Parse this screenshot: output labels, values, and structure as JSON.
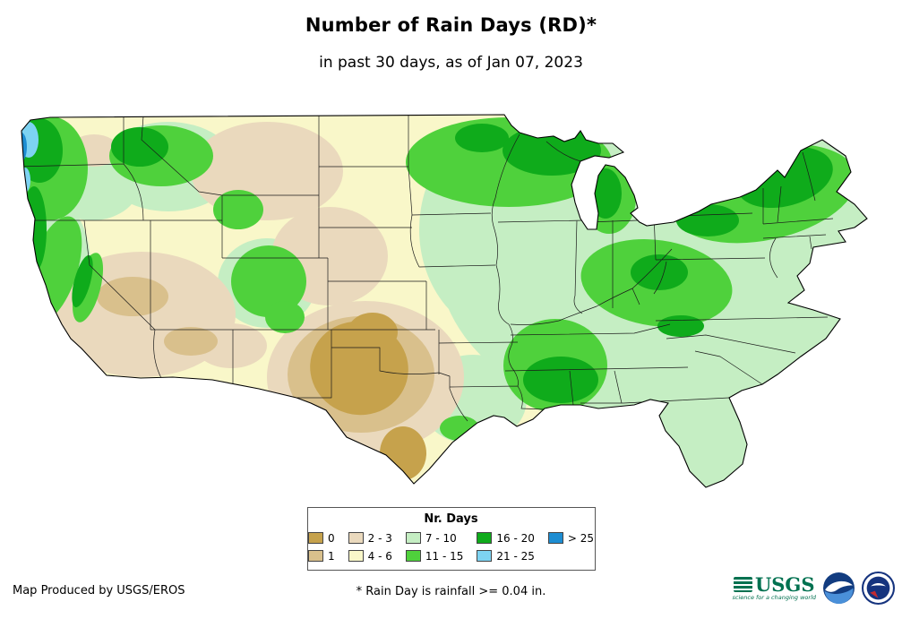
{
  "header": {
    "title": "Number of Rain Days (RD)*",
    "subtitle": "in past 30 days, as of Jan 07, 2023"
  },
  "map": {
    "name": "Continental United States - number of rain days in past 30 days",
    "outline_color": "#000000",
    "state_border_color": "#1a1a1a"
  },
  "legend": {
    "title": "Nr. Days",
    "items": [
      {
        "label": "0",
        "color": "#c6a24c"
      },
      {
        "label": "1",
        "color": "#d9c08c"
      },
      {
        "label": "2 - 3",
        "color": "#ead9bd"
      },
      {
        "label": "4 - 6",
        "color": "#f9f7c9"
      },
      {
        "label": "7 - 10",
        "color": "#c5eec3"
      },
      {
        "label": "11 - 15",
        "color": "#4fd13c"
      },
      {
        "label": "16 - 20",
        "color": "#0fab1b"
      },
      {
        "label": "21 - 25",
        "color": "#7dd3f2"
      },
      {
        "label": "> 25",
        "color": "#1d8dd2"
      }
    ]
  },
  "footer": {
    "credit": "Map Produced by USGS/EROS",
    "note": "* Rain Day is rainfall >= 0.04 in."
  },
  "logos": {
    "usgs": {
      "text": "USGS",
      "tagline": "science for a changing world",
      "color": "#007150"
    },
    "noaa": {
      "color": "#123c80"
    },
    "nws": {
      "color": "#15337e",
      "accent": "#c32b31"
    }
  }
}
